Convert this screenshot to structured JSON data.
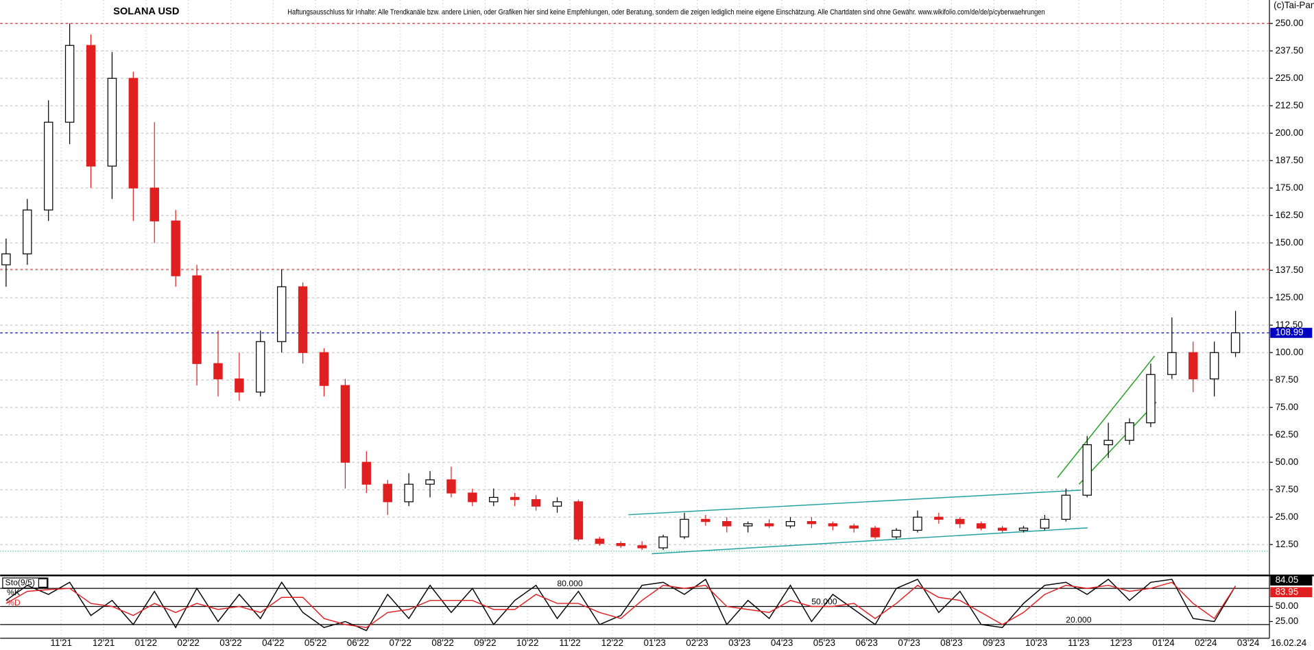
{
  "chart_data": [
    {
      "type": "candlestick",
      "title": "SOLANA USD",
      "disclaimer": "Haftungsausschluss für Inhalte: Alle Trendkanäle bzw. andere Linien, oder Grafiken hier sind keine Empfehlungen, oder Beratung, sondern die zeigen lediglich meine eigene Einschätzung. Alle Chartdaten sind ohne Gewähr. www.wikifolio.com/de/de/p/cyberwaehrungen",
      "copyright": "(c)Tai-Pan",
      "last_date": "16.02.24",
      "xlim": [
        -1.44,
        28.5
      ],
      "ylim": [
        -1.2,
        260.7
      ],
      "up_color": "#000000",
      "down_color": "#e02020",
      "x": [
        -1.3,
        -0.8,
        -0.3,
        0.2,
        0.7,
        1.2,
        1.7,
        2.2,
        2.7,
        3.2,
        3.7,
        4.2,
        4.7,
        5.2,
        5.7,
        6.2,
        6.7,
        7.2,
        7.7,
        8.2,
        8.7,
        9.2,
        9.7,
        10.2,
        10.7,
        11.2,
        11.7,
        12.2,
        12.7,
        13.2,
        13.7,
        14.2,
        14.7,
        15.2,
        15.7,
        16.2,
        16.7,
        17.2,
        17.7,
        18.2,
        18.7,
        19.2,
        19.7,
        20.2,
        20.7,
        21.2,
        21.7,
        22.2,
        22.7,
        23.2,
        23.7,
        24.2,
        24.7,
        25.2,
        25.7,
        26.2,
        26.7,
        27.2,
        27.7
      ],
      "open": [
        140,
        145,
        165,
        205,
        240,
        185,
        225,
        175,
        160,
        135,
        95,
        88,
        82,
        105,
        130,
        100,
        85,
        50,
        40,
        32,
        40,
        42,
        36,
        32,
        34,
        33,
        30,
        32,
        15,
        13,
        12,
        11,
        16,
        24,
        23,
        21,
        22,
        21,
        23,
        22,
        21,
        20,
        16,
        19,
        25,
        24,
        22,
        20,
        19,
        20,
        24,
        35,
        58,
        60,
        68,
        90,
        100,
        88,
        100
      ],
      "high": [
        152,
        170,
        215,
        250,
        245,
        237,
        228,
        205,
        165,
        140,
        110,
        100,
        110,
        138,
        132,
        102,
        88,
        55,
        42,
        45,
        46,
        48,
        38,
        38,
        36,
        35,
        34,
        33,
        16,
        14,
        14,
        17,
        27,
        26,
        25,
        23,
        24,
        25,
        25,
        23,
        22,
        21,
        20,
        28,
        27,
        25,
        23,
        21,
        21,
        26,
        38,
        62,
        68,
        70,
        95,
        116,
        105,
        105,
        119
      ],
      "low": [
        130,
        140,
        160,
        195,
        175,
        170,
        160,
        150,
        130,
        85,
        80,
        78,
        80,
        100,
        95,
        80,
        38,
        36,
        26,
        30,
        34,
        34,
        30,
        30,
        30,
        28,
        27,
        14,
        12,
        11,
        10,
        10,
        15,
        21,
        18,
        18,
        20,
        20,
        20,
        19,
        18,
        15,
        15,
        18,
        22,
        20,
        19,
        18,
        18,
        19,
        23,
        34,
        52,
        58,
        66,
        88,
        82,
        80,
        98
      ],
      "close": [
        145,
        165,
        205,
        240,
        185,
        225,
        175,
        160,
        135,
        95,
        88,
        82,
        105,
        130,
        100,
        85,
        50,
        40,
        32,
        40,
        42,
        36,
        32,
        34,
        33,
        30,
        32,
        15,
        13,
        12,
        11,
        16,
        24,
        23,
        21,
        22,
        21,
        23,
        22,
        21,
        20,
        16,
        19,
        25,
        24,
        22,
        20,
        19,
        20,
        24,
        35,
        58,
        60,
        68,
        90,
        100,
        88,
        100,
        108.99
      ],
      "yticks": [
        {
          "value": 12.5,
          "label": "12.50"
        },
        {
          "value": 25,
          "label": "25.00"
        },
        {
          "value": 37.5,
          "label": "37.50"
        },
        {
          "value": 50,
          "label": "50.00"
        },
        {
          "value": 62.5,
          "label": "62.50"
        },
        {
          "value": 75,
          "label": "75.00"
        },
        {
          "value": 87.5,
          "label": "87.50"
        },
        {
          "value": 100,
          "label": "100.00"
        },
        {
          "value": 112.5,
          "label": "112.50"
        },
        {
          "value": 125,
          "label": "125.00"
        },
        {
          "value": 137.5,
          "label": "137.50"
        },
        {
          "value": 150,
          "label": "150.00"
        },
        {
          "value": 162.5,
          "label": "162.50"
        },
        {
          "value": 175,
          "label": "175.00"
        },
        {
          "value": 187.5,
          "label": "187.50"
        },
        {
          "value": 200,
          "label": "200.00"
        },
        {
          "value": 212.5,
          "label": "212.50"
        },
        {
          "value": 225,
          "label": "225.00"
        },
        {
          "value": 237.5,
          "label": "237.50"
        },
        {
          "value": 250,
          "label": "250.00"
        }
      ],
      "grid": true,
      "hlines": [
        {
          "value": 250,
          "color": "#e03030",
          "style": "dashed"
        },
        {
          "value": 138,
          "color": "#e06060",
          "style": "dashed"
        },
        {
          "value": 108.99,
          "color": "#0000c0",
          "style": "dashed",
          "marker": true
        },
        {
          "value": 9.5,
          "color": "#30c070",
          "style": "dotted"
        }
      ],
      "trendlines": [
        {
          "x": [
            13.38,
            24.05
          ],
          "y": [
            26.1,
            37.3
          ],
          "color": "#20a0a0"
        },
        {
          "x": [
            13.93,
            24.21
          ],
          "y": [
            8.3,
            20.1
          ],
          "color": "#20a0a0"
        },
        {
          "x": [
            23.5,
            25.79
          ],
          "y": [
            43.0,
            98.4
          ],
          "color": "#20a020"
        },
        {
          "x": [
            24.01,
            25.83
          ],
          "y": [
            40.0,
            77.4
          ],
          "color": "#20a020"
        }
      ]
    },
    {
      "type": "line",
      "title": "Sto(9/5)",
      "xlim": [
        -1.44,
        28.5
      ],
      "ylim": [
        0,
        100
      ],
      "xticks": [
        {
          "value": 0,
          "label": "11'21"
        },
        {
          "value": 1,
          "label": "12'21"
        },
        {
          "value": 2,
          "label": "01'22"
        },
        {
          "value": 3,
          "label": "02'22"
        },
        {
          "value": 4,
          "label": "03'22"
        },
        {
          "value": 5,
          "label": "04'22"
        },
        {
          "value": 6,
          "label": "05'22"
        },
        {
          "value": 7,
          "label": "06'22"
        },
        {
          "value": 8,
          "label": "07'22"
        },
        {
          "value": 9,
          "label": "08'22"
        },
        {
          "value": 10,
          "label": "09'22"
        },
        {
          "value": 11,
          "label": "10'22"
        },
        {
          "value": 12,
          "label": "11'22"
        },
        {
          "value": 13,
          "label": "12'22"
        },
        {
          "value": 14,
          "label": "01'23"
        },
        {
          "value": 15,
          "label": "02'23"
        },
        {
          "value": 16,
          "label": "03'23"
        },
        {
          "value": 17,
          "label": "04'23"
        },
        {
          "value": 18,
          "label": "05'23"
        },
        {
          "value": 19,
          "label": "06'23"
        },
        {
          "value": 20,
          "label": "07'23"
        },
        {
          "value": 21,
          "label": "08'23"
        },
        {
          "value": 22,
          "label": "09'23"
        },
        {
          "value": 23,
          "label": "10'23"
        },
        {
          "value": 24,
          "label": "11'23"
        },
        {
          "value": 25,
          "label": "12'23"
        },
        {
          "value": 26,
          "label": "01'24"
        },
        {
          "value": 27,
          "label": "02'24"
        },
        {
          "value": 28,
          "label": "03'24"
        }
      ],
      "yticks": [
        {
          "value": 25,
          "label": "25.00"
        },
        {
          "value": 50,
          "label": "50.00"
        }
      ],
      "levels": [
        {
          "value": 80,
          "label": "80.000"
        },
        {
          "value": 50,
          "label": "50.000"
        },
        {
          "value": 20,
          "label": "20.000"
        }
      ],
      "x": [
        -1.3,
        -0.8,
        -0.3,
        0.2,
        0.7,
        1.2,
        1.7,
        2.2,
        2.7,
        3.2,
        3.7,
        4.2,
        4.7,
        5.2,
        5.7,
        6.2,
        6.7,
        7.2,
        7.7,
        8.2,
        8.7,
        9.2,
        9.7,
        10.2,
        10.7,
        11.2,
        11.7,
        12.2,
        12.7,
        13.2,
        13.7,
        14.2,
        14.7,
        15.2,
        15.7,
        16.2,
        16.7,
        17.2,
        17.7,
        18.2,
        18.7,
        19.2,
        19.7,
        20.2,
        20.7,
        21.2,
        21.7,
        22.2,
        22.7,
        23.2,
        23.7,
        24.2,
        24.7,
        25.2,
        25.7,
        26.2,
        26.7,
        27.2,
        27.7
      ],
      "series": [
        {
          "name": "%K",
          "color": "#000000",
          "values": [
            60,
            85,
            70,
            90,
            35,
            60,
            20,
            75,
            15,
            80,
            25,
            70,
            30,
            90,
            40,
            15,
            25,
            10,
            70,
            30,
            85,
            40,
            80,
            20,
            60,
            85,
            30,
            75,
            20,
            35,
            85,
            90,
            70,
            95,
            20,
            60,
            30,
            85,
            25,
            70,
            45,
            20,
            80,
            95,
            40,
            75,
            20,
            15,
            55,
            85,
            90,
            70,
            95,
            60,
            90,
            95,
            30,
            25,
            84.05
          ]
        },
        {
          "name": "%D",
          "color": "#e02020",
          "values": [
            55,
            75,
            78,
            80,
            55,
            50,
            35,
            55,
            40,
            55,
            45,
            50,
            40,
            65,
            65,
            30,
            20,
            15,
            40,
            45,
            60,
            60,
            60,
            45,
            45,
            70,
            55,
            55,
            40,
            30,
            60,
            85,
            80,
            85,
            50,
            45,
            40,
            60,
            50,
            50,
            55,
            30,
            55,
            85,
            65,
            60,
            40,
            20,
            40,
            70,
            85,
            80,
            85,
            75,
            80,
            90,
            55,
            30,
            83.95
          ]
        }
      ]
    }
  ]
}
